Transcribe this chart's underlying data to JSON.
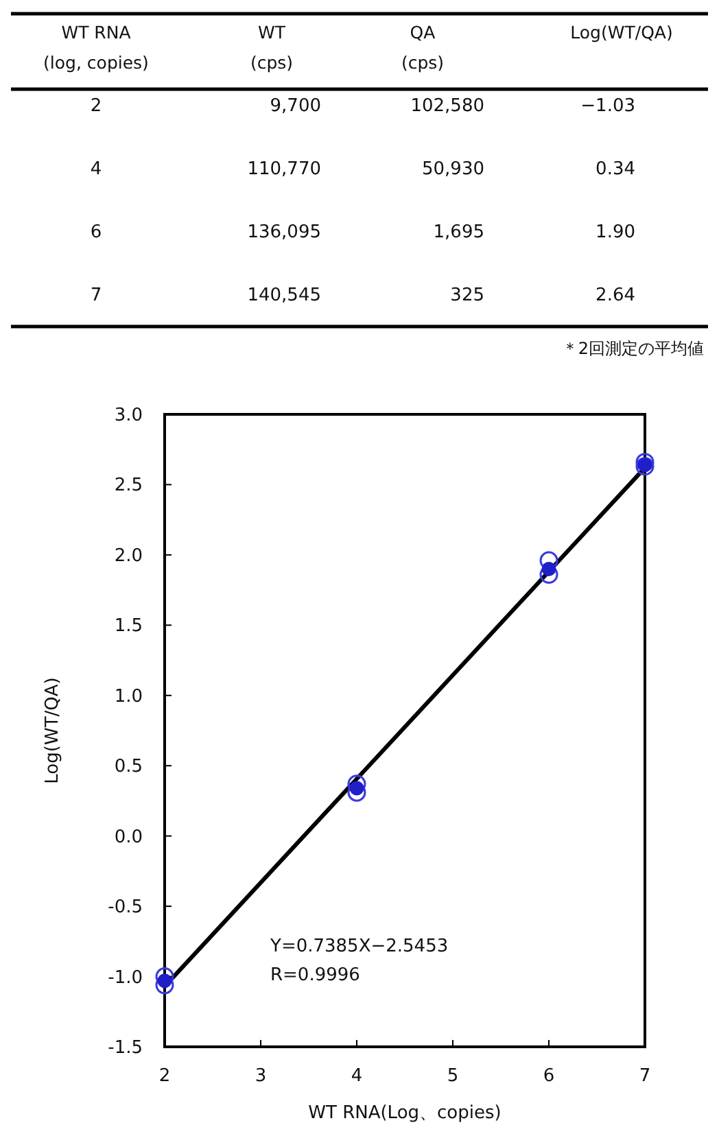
{
  "chart_data": [
    {
      "type": "other",
      "categories": [
        "WT RNA\n(log, copies)",
        "WT\n(cps)",
        "QA\n(cps)",
        "Log(WT/QA)"
      ],
      "cell_labels": [
        [
          "2",
          "9,700",
          "102,580",
          "−1.03"
        ],
        [
          "4",
          "110,770",
          "50,930",
          "0.34"
        ],
        [
          "6",
          "136,095",
          "1,695",
          "1.90"
        ],
        [
          "7",
          "140,545",
          "325",
          "2.64"
        ]
      ],
      "annotations": [
        "＊2回測定の平均値"
      ]
    },
    {
      "type": "scatter",
      "xlabel": "WT RNA(Log、copies)",
      "ylabel": "Log(WT/QA)",
      "xlim": [
        2,
        7
      ],
      "xticks": [
        2,
        3,
        4,
        5,
        6,
        7
      ],
      "ylim": [
        -1.5,
        3.0
      ],
      "yticks": [
        {
          "value": -1.5,
          "label": "-1.5"
        },
        {
          "value": -1,
          "label": "-1.0"
        },
        {
          "value": -0.5,
          "label": "-0.5"
        },
        {
          "value": 0,
          "label": "0.0"
        },
        {
          "value": 0.5,
          "label": "0.5"
        },
        {
          "value": 1,
          "label": "1.0"
        },
        {
          "value": 1.5,
          "label": "1.5"
        },
        {
          "value": 2,
          "label": "2.0"
        },
        {
          "value": 2.5,
          "label": "2.5"
        },
        {
          "value": 3,
          "label": "3.0"
        }
      ],
      "grid": false,
      "series": [
        {
          "type": "scatter",
          "marker": "circle",
          "color": "#3a3ae0",
          "x": [
            2,
            2,
            4,
            4,
            6,
            6,
            7,
            7
          ],
          "values": [
            -1.0,
            -1.06,
            0.37,
            0.31,
            1.96,
            1.86,
            2.63,
            2.66
          ]
        },
        {
          "type": "scatter",
          "marker": "circle",
          "color": "#2020c8",
          "x": [
            2,
            4,
            6,
            7
          ],
          "values": [
            -1.03,
            0.34,
            1.9,
            2.64
          ]
        },
        {
          "type": "line",
          "color": "#000000",
          "x": [
            2,
            7
          ],
          "values": [
            -1.07,
            2.62
          ]
        }
      ],
      "annotations": [
        "Y=0.7385X−2.5453",
        "R=0.9996"
      ]
    }
  ]
}
